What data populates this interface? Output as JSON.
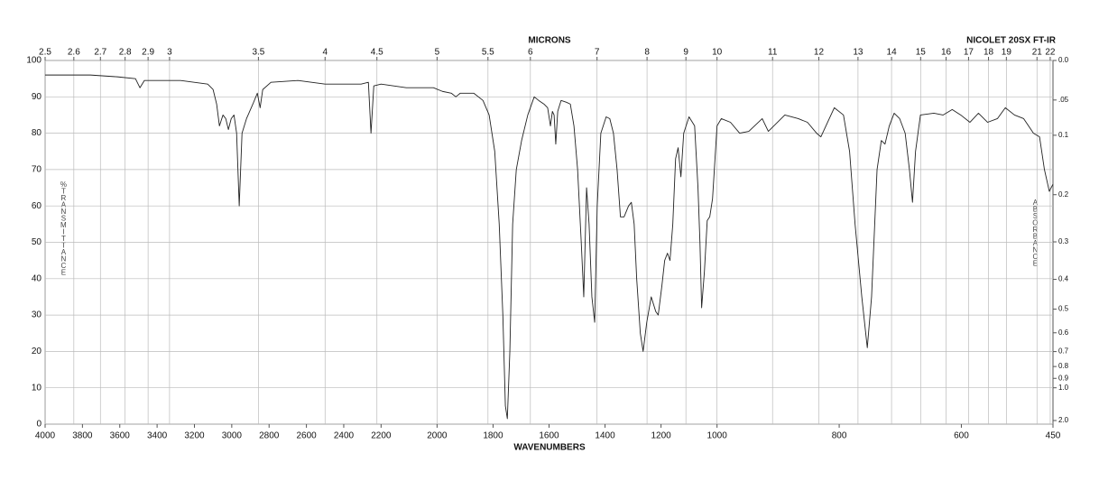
{
  "chart_data": {
    "type": "line",
    "title": "NICOLET 20SX FT-IR",
    "xlabel": "WAVENUMBERS",
    "x2label": "MICRONS",
    "ylabel": "%TRANSMITTANCE",
    "y2label": "ABSORBANCE",
    "xlim": [
      4000,
      450
    ],
    "xscale_breaks": [
      2200,
      1000
    ],
    "xticks": [
      4000,
      3800,
      3600,
      3400,
      3200,
      3000,
      2800,
      2600,
      2400,
      2200,
      2000,
      1800,
      1600,
      1400,
      1200,
      1000,
      800,
      600,
      450
    ],
    "x2ticks": [
      2.5,
      2.6,
      2.7,
      2.8,
      2.9,
      3,
      3.5,
      4,
      4.5,
      5,
      5.5,
      6,
      7,
      8,
      9,
      10,
      11,
      12,
      13,
      14,
      15,
      16,
      17,
      18,
      19,
      21,
      22
    ],
    "x2scale": "microns",
    "ylim": [
      0,
      100
    ],
    "yticks": [
      0,
      10,
      20,
      30,
      40,
      50,
      60,
      70,
      80,
      90,
      100
    ],
    "y2scale": "absorbance",
    "y2ticks": [
      {
        "value": 0,
        "label": "0.0"
      },
      {
        "value": 0.05,
        "label": ".05"
      },
      {
        "value": 0.1,
        "label": "0.1"
      },
      {
        "value": 0.2,
        "label": "0.2"
      },
      {
        "value": 0.3,
        "label": "0.3"
      },
      {
        "value": 0.4,
        "label": "0.4"
      },
      {
        "value": 0.5,
        "label": "0.5"
      },
      {
        "value": 0.6,
        "label": "0.6"
      },
      {
        "value": 0.7,
        "label": "0.7"
      },
      {
        "value": 0.8,
        "label": "0.8"
      },
      {
        "value": 0.9,
        "label": "0.9"
      },
      {
        "value": 1,
        "label": "1.0"
      },
      {
        "value": 2,
        "label": "2.0"
      }
    ],
    "grid": true,
    "x": [
      4000,
      3758,
      3613,
      3516,
      3492,
      3468,
      3274,
      3129,
      3100,
      3081,
      3066,
      3047,
      3032,
      3018,
      3003,
      2988,
      2974,
      2960,
      2945,
      2921,
      2887,
      2863,
      2848,
      2834,
      2790,
      2645,
      2500,
      2307,
      2268,
      2254,
      2239,
      2200,
      2110,
      2013,
      1981,
      1949,
      1933,
      1917,
      1869,
      1836,
      1814,
      1794,
      1778,
      1765,
      1756,
      1749,
      1740,
      1730,
      1717,
      1698,
      1676,
      1653,
      1637,
      1618,
      1605,
      1595,
      1588,
      1582,
      1576,
      1569,
      1557,
      1538,
      1524,
      1511,
      1498,
      1485,
      1476,
      1466,
      1457,
      1447,
      1437,
      1428,
      1415,
      1396,
      1383,
      1370,
      1357,
      1345,
      1332,
      1316,
      1306,
      1296,
      1287,
      1274,
      1264,
      1251,
      1235,
      1219,
      1210,
      1197,
      1187,
      1177,
      1168,
      1158,
      1148,
      1139,
      1129,
      1119,
      1100,
      1080,
      1068,
      1061,
      1055,
      1045,
      1035,
      1026,
      1016,
      1000,
      993,
      978,
      963,
      948,
      926,
      916,
      889,
      867,
      852,
      837,
      830,
      808,
      793,
      783,
      774,
      763,
      754,
      747,
      738,
      731,
      725,
      718,
      710,
      701,
      692,
      685,
      680,
      675,
      667,
      645,
      630,
      615,
      601,
      586,
      572,
      557,
      541,
      528,
      513,
      498,
      482,
      472,
      464,
      456,
      450
    ],
    "series": [
      {
        "color": "#222222",
        "values": [
          96,
          96,
          95.5,
          95,
          92.5,
          94.5,
          94.5,
          93.5,
          92,
          88,
          82,
          85,
          84,
          81,
          84,
          85,
          80,
          60,
          80,
          84,
          88,
          91,
          87,
          92,
          94,
          94.5,
          93.5,
          93.5,
          94,
          80,
          93,
          93.5,
          92.5,
          92.5,
          91.5,
          91,
          90,
          91,
          91,
          89,
          85,
          75,
          55,
          30,
          5,
          1.5,
          20,
          55,
          70,
          78,
          85,
          90,
          89,
          88,
          87,
          82,
          86,
          85,
          77,
          86,
          89,
          88.5,
          88,
          82,
          70,
          50,
          35,
          65,
          55,
          35,
          28,
          60,
          80,
          84.5,
          84,
          80,
          70,
          57,
          57,
          60,
          61,
          55,
          40,
          25,
          20,
          28,
          35,
          31,
          30,
          38,
          45,
          47,
          45,
          55,
          73,
          76,
          68,
          80,
          84.5,
          82,
          65,
          50,
          32,
          42,
          56,
          57,
          62,
          82,
          84,
          83,
          80,
          80.5,
          84,
          80.5,
          85,
          84,
          83,
          80,
          79,
          87,
          85,
          75,
          55,
          35,
          21,
          35,
          70,
          78,
          77,
          82,
          85.5,
          84,
          80,
          70,
          61,
          75,
          85,
          85.5,
          85,
          86.5,
          85,
          83,
          85.5,
          83,
          84,
          87,
          85,
          84,
          80,
          79,
          70,
          64,
          66
        ]
      }
    ]
  }
}
